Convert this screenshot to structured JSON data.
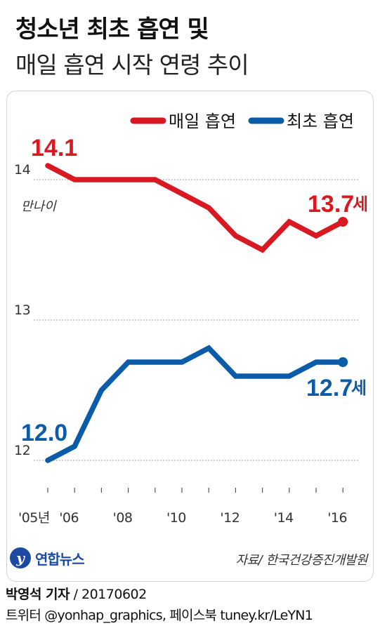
{
  "title": {
    "line1": "청소년 최초 흡연 및",
    "line2": "매일 흡연 시작 연령 추이"
  },
  "colors": {
    "daily": "#d81921",
    "first": "#0a5ca8",
    "grid": "#9a9a9a",
    "brand": "#1b4aa0"
  },
  "chart_data": {
    "type": "line",
    "x": [
      2005,
      2006,
      2007,
      2008,
      2009,
      2010,
      2011,
      2012,
      2013,
      2014,
      2015,
      2016
    ],
    "xticks": [
      {
        "x": 2005,
        "label": "'05년"
      },
      {
        "x": 2006,
        "label": "'06"
      },
      {
        "x": 2008,
        "label": "'08"
      },
      {
        "x": 2010,
        "label": "'10"
      },
      {
        "x": 2012,
        "label": "'12"
      },
      {
        "x": 2014,
        "label": "'14"
      },
      {
        "x": 2016,
        "label": "'16"
      }
    ],
    "yticks": [
      12,
      13,
      14
    ],
    "ylim": [
      12,
      14.25
    ],
    "ylabel": "만나이",
    "grid": "horizontal dotted",
    "legend_position": "top-right",
    "series": [
      {
        "name": "매일 흡연",
        "key": "daily",
        "values": [
          14.1,
          14.0,
          14.0,
          14.0,
          14.0,
          13.9,
          13.8,
          13.6,
          13.5,
          13.7,
          13.6,
          13.7
        ],
        "first_label": "14.1",
        "last_label": "13.7",
        "last_suffix": "세"
      },
      {
        "name": "최초 흡연",
        "key": "first",
        "values": [
          12.0,
          12.1,
          12.5,
          12.7,
          12.7,
          12.7,
          12.8,
          12.6,
          12.6,
          12.6,
          12.7,
          12.7
        ],
        "first_label": "12.0",
        "last_label": "12.7",
        "last_suffix": "세"
      }
    ]
  },
  "footer": {
    "logo_mark": "y",
    "logo_text": "연합뉴스",
    "source": "자료/ 한국건강증진개발원",
    "author": "박영석 기자",
    "date": "/ 20170602",
    "sns": "트위터 @yonhap_graphics, 페이스북 tuney.kr/LeYN1"
  }
}
